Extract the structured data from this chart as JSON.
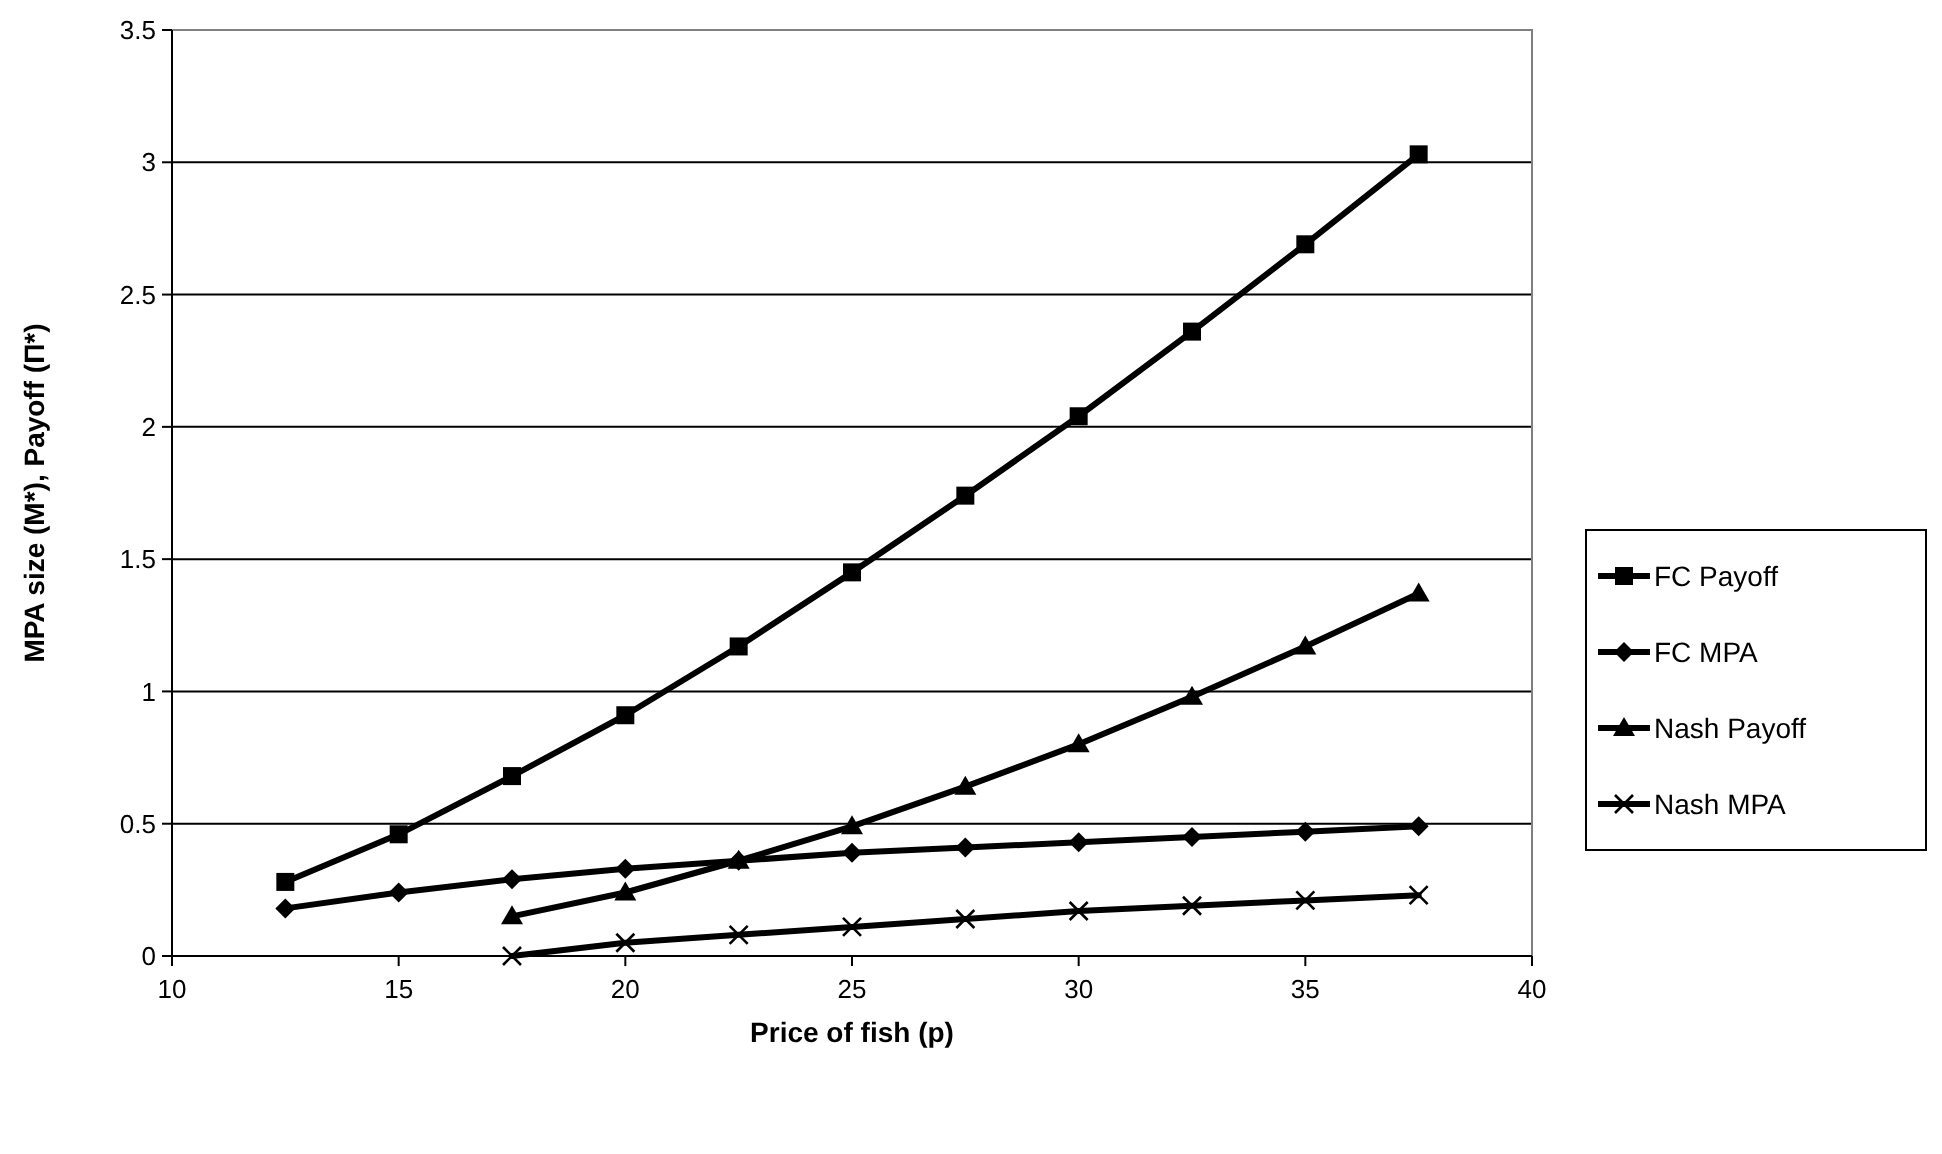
{
  "chart_data": {
    "type": "line",
    "xlabel": "Price of fish (p)",
    "ylabel": "MPA size (M*), Payoff (Π*)",
    "xlim": [
      10,
      40
    ],
    "xticks": [
      10,
      15,
      20,
      25,
      30,
      35,
      40
    ],
    "ylim": [
      0,
      3.5
    ],
    "yticks": [
      0,
      0.5,
      1,
      1.5,
      2,
      2.5,
      3,
      3.5
    ],
    "grid": "y",
    "legend": "right",
    "line_style": "solid",
    "series": [
      {
        "name": "FC Payoff",
        "color": "#000000",
        "marker": "square",
        "x": [
          12.5,
          15,
          17.5,
          20,
          22.5,
          25,
          27.5,
          30,
          32.5,
          35,
          37.5
        ],
        "values": [
          0.28,
          0.46,
          0.68,
          0.91,
          1.17,
          1.45,
          1.74,
          2.04,
          2.36,
          2.69,
          3.03
        ]
      },
      {
        "name": "FC MPA",
        "color": "#000000",
        "marker": "diamond",
        "x": [
          12.5,
          15,
          17.5,
          20,
          22.5,
          25,
          27.5,
          30,
          32.5,
          35,
          37.5
        ],
        "values": [
          0.18,
          0.24,
          0.29,
          0.33,
          0.36,
          0.39,
          0.41,
          0.43,
          0.45,
          0.47,
          0.49
        ]
      },
      {
        "name": "Nash Payoff",
        "color": "#000000",
        "marker": "triangle",
        "x": [
          17.5,
          20,
          22.5,
          25,
          27.5,
          30,
          32.5,
          35,
          37.5
        ],
        "values": [
          0.15,
          0.24,
          0.36,
          0.49,
          0.64,
          0.8,
          0.98,
          1.17,
          1.37
        ]
      },
      {
        "name": "Nash MPA",
        "color": "#000000",
        "marker": "cross",
        "x": [
          17.5,
          20,
          22.5,
          25,
          27.5,
          30,
          32.5,
          35,
          37.5
        ],
        "values": [
          0,
          0.05,
          0.08,
          0.11,
          0.14,
          0.17,
          0.19,
          0.21,
          0.23
        ]
      }
    ]
  }
}
